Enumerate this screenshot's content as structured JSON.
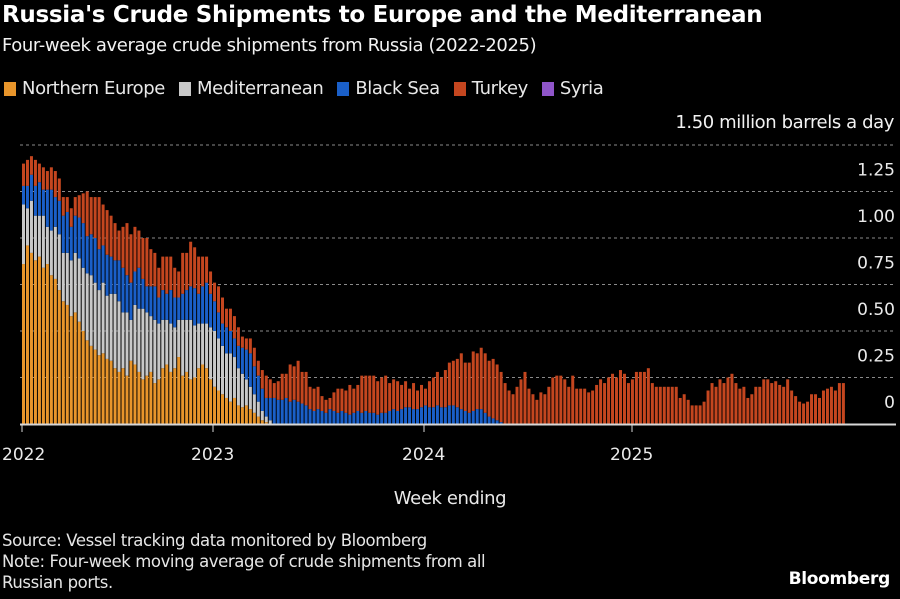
{
  "title": "Russia's Crude Shipments to Europe and the Mediterranean",
  "subtitle": "Four-week average crude shipments from Russia (2022-2025)",
  "unit_label": "1.50 million barrels a day",
  "xlabel": "Week ending",
  "footer": {
    "source": "Source: Vessel tracking data monitored by Bloomberg",
    "note_line1": "Note: Four-week moving average of crude shipments from all",
    "note_line2": "Russian ports."
  },
  "brand": "Bloomberg",
  "legend": [
    {
      "name": "Northern Europe",
      "color": "#e8952b"
    },
    {
      "name": "Mediterranean",
      "color": "#c8c8c8"
    },
    {
      "name": "Black Sea",
      "color": "#1a5fc8"
    },
    {
      "name": "Turkey",
      "color": "#c4461f"
    },
    {
      "name": "Syria",
      "color": "#8f55c9"
    }
  ],
  "chart_data": {
    "type": "bar",
    "stacked": true,
    "title": "Russia's Crude Shipments to Europe and the Mediterranean",
    "subtitle": "Four-week average crude shipments from Russia (2022-2025)",
    "xlabel": "Week ending",
    "ylabel": "million barrels a day",
    "ylim": [
      0,
      1.5
    ],
    "yticks": [
      0,
      0.25,
      0.5,
      0.75,
      1.0,
      1.25,
      1.5
    ],
    "ytick_labels": [
      "0",
      "0.25",
      "0.50",
      "0.75",
      "1.00",
      "1.25",
      "1.50 million barrels a day"
    ],
    "xticks": [
      "2022",
      "2023",
      "2024",
      "2025"
    ],
    "grid": true,
    "legend_position": "top-left",
    "x_start": "2022-01",
    "x_end": "2025-10",
    "frequency": "weekly",
    "series": [
      {
        "name": "Northern Europe",
        "color": "#e8952b",
        "values": [
          0.86,
          0.96,
          0.92,
          0.88,
          0.9,
          0.84,
          0.86,
          0.8,
          0.78,
          0.72,
          0.66,
          0.64,
          0.58,
          0.6,
          0.55,
          0.5,
          0.45,
          0.42,
          0.4,
          0.37,
          0.38,
          0.35,
          0.34,
          0.3,
          0.28,
          0.3,
          0.26,
          0.34,
          0.32,
          0.28,
          0.24,
          0.26,
          0.28,
          0.22,
          0.24,
          0.3,
          0.32,
          0.28,
          0.3,
          0.36,
          0.26,
          0.28,
          0.24,
          0.25,
          0.3,
          0.32,
          0.3,
          0.24,
          0.2,
          0.18,
          0.16,
          0.14,
          0.12,
          0.14,
          0.1,
          0.09,
          0.1,
          0.08,
          0.06,
          0.04,
          0.02,
          0.01,
          0,
          0,
          0,
          0,
          0,
          0,
          0,
          0,
          0,
          0,
          0,
          0,
          0,
          0,
          0,
          0,
          0,
          0,
          0,
          0,
          0,
          0,
          0,
          0,
          0,
          0,
          0,
          0,
          0,
          0,
          0,
          0,
          0,
          0,
          0,
          0,
          0,
          0,
          0,
          0,
          0,
          0,
          0,
          0,
          0,
          0,
          0,
          0,
          0,
          0,
          0,
          0,
          0,
          0,
          0,
          0,
          0,
          0,
          0,
          0,
          0,
          0,
          0,
          0,
          0,
          0,
          0,
          0,
          0,
          0,
          0,
          0,
          0,
          0,
          0,
          0,
          0,
          0,
          0,
          0,
          0,
          0,
          0,
          0,
          0,
          0,
          0,
          0,
          0,
          0,
          0,
          0,
          0,
          0,
          0,
          0,
          0,
          0,
          0,
          0,
          0,
          0,
          0,
          0,
          0,
          0,
          0,
          0,
          0,
          0,
          0,
          0,
          0,
          0,
          0,
          0,
          0,
          0,
          0,
          0,
          0,
          0,
          0,
          0,
          0,
          0,
          0,
          0,
          0,
          0,
          0,
          0,
          0,
          0,
          0,
          0,
          0,
          0,
          0,
          0,
          0,
          0,
          0,
          0,
          0,
          0,
          0,
          0,
          0,
          0
        ]
      },
      {
        "name": "Mediterranean",
        "color": "#c8c8c8",
        "values": [
          0.32,
          0.2,
          0.28,
          0.24,
          0.22,
          0.28,
          0.2,
          0.24,
          0.28,
          0.3,
          0.26,
          0.28,
          0.3,
          0.32,
          0.34,
          0.34,
          0.36,
          0.38,
          0.36,
          0.35,
          0.38,
          0.34,
          0.36,
          0.4,
          0.38,
          0.3,
          0.34,
          0.22,
          0.32,
          0.34,
          0.38,
          0.34,
          0.3,
          0.34,
          0.3,
          0.26,
          0.24,
          0.26,
          0.22,
          0.2,
          0.3,
          0.28,
          0.32,
          0.28,
          0.24,
          0.22,
          0.24,
          0.28,
          0.3,
          0.28,
          0.26,
          0.24,
          0.26,
          0.22,
          0.2,
          0.18,
          0.14,
          0.12,
          0.1,
          0.08,
          0.05,
          0.03,
          0.02,
          0,
          0,
          0,
          0,
          0,
          0,
          0,
          0,
          0,
          0,
          0,
          0,
          0,
          0,
          0,
          0,
          0,
          0,
          0,
          0,
          0,
          0,
          0,
          0,
          0,
          0,
          0,
          0,
          0,
          0,
          0,
          0,
          0,
          0,
          0,
          0,
          0,
          0,
          0,
          0,
          0,
          0,
          0,
          0,
          0,
          0,
          0,
          0,
          0,
          0,
          0,
          0,
          0,
          0,
          0,
          0,
          0,
          0,
          0,
          0,
          0,
          0,
          0,
          0,
          0,
          0,
          0,
          0,
          0,
          0,
          0,
          0,
          0,
          0,
          0,
          0,
          0,
          0,
          0,
          0,
          0,
          0,
          0,
          0,
          0,
          0,
          0,
          0,
          0,
          0,
          0,
          0,
          0,
          0,
          0,
          0,
          0,
          0,
          0,
          0,
          0,
          0,
          0,
          0,
          0,
          0,
          0,
          0,
          0,
          0,
          0,
          0,
          0,
          0,
          0,
          0,
          0,
          0,
          0,
          0,
          0,
          0,
          0,
          0,
          0,
          0,
          0,
          0,
          0,
          0,
          0,
          0,
          0,
          0,
          0,
          0,
          0,
          0,
          0,
          0,
          0,
          0,
          0,
          0,
          0,
          0,
          0,
          0,
          0,
          0,
          0
        ]
      },
      {
        "name": "Black Sea",
        "color": "#1a5fc8",
        "values": [
          0.1,
          0.12,
          0.14,
          0.16,
          0.18,
          0.14,
          0.2,
          0.22,
          0.16,
          0.18,
          0.2,
          0.22,
          0.18,
          0.2,
          0.22,
          0.24,
          0.2,
          0.22,
          0.24,
          0.22,
          0.2,
          0.22,
          0.2,
          0.18,
          0.22,
          0.24,
          0.2,
          0.2,
          0.18,
          0.22,
          0.16,
          0.14,
          0.16,
          0.18,
          0.14,
          0.16,
          0.14,
          0.18,
          0.16,
          0.12,
          0.14,
          0.16,
          0.18,
          0.2,
          0.16,
          0.2,
          0.22,
          0.18,
          0.16,
          0.14,
          0.12,
          0.14,
          0.12,
          0.1,
          0.12,
          0.14,
          0.16,
          0.18,
          0.15,
          0.14,
          0.12,
          0.1,
          0.12,
          0.14,
          0.13,
          0.13,
          0.14,
          0.12,
          0.13,
          0.12,
          0.11,
          0.1,
          0.08,
          0.07,
          0.08,
          0.07,
          0.06,
          0.08,
          0.07,
          0.06,
          0.07,
          0.06,
          0.05,
          0.06,
          0.07,
          0.06,
          0.07,
          0.06,
          0.06,
          0.05,
          0.06,
          0.06,
          0.07,
          0.08,
          0.07,
          0.08,
          0.09,
          0.09,
          0.08,
          0.08,
          0.09,
          0.1,
          0.09,
          0.09,
          0.1,
          0.09,
          0.09,
          0.1,
          0.1,
          0.09,
          0.08,
          0.07,
          0.06,
          0.07,
          0.08,
          0.08,
          0.06,
          0.04,
          0.03,
          0.02,
          0.01,
          0,
          0,
          0,
          0,
          0,
          0,
          0,
          0,
          0,
          0,
          0,
          0,
          0,
          0,
          0,
          0,
          0,
          0,
          0,
          0,
          0,
          0,
          0,
          0,
          0,
          0,
          0,
          0,
          0,
          0,
          0,
          0,
          0,
          0,
          0,
          0,
          0,
          0,
          0,
          0,
          0,
          0,
          0,
          0,
          0,
          0,
          0,
          0,
          0,
          0,
          0,
          0,
          0,
          0,
          0,
          0,
          0,
          0,
          0,
          0,
          0,
          0,
          0,
          0,
          0,
          0,
          0,
          0,
          0,
          0,
          0,
          0,
          0,
          0,
          0,
          0,
          0,
          0,
          0,
          0,
          0,
          0,
          0,
          0,
          0,
          0,
          0,
          0,
          0,
          0,
          0,
          0,
          0,
          0
        ]
      },
      {
        "name": "Turkey",
        "color": "#c4461f",
        "values": [
          0.12,
          0.14,
          0.1,
          0.14,
          0.1,
          0.12,
          0.1,
          0.12,
          0.14,
          0.12,
          0.1,
          0.08,
          0.1,
          0.1,
          0.12,
          0.16,
          0.24,
          0.2,
          0.22,
          0.28,
          0.22,
          0.24,
          0.22,
          0.2,
          0.16,
          0.22,
          0.28,
          0.26,
          0.24,
          0.2,
          0.22,
          0.26,
          0.2,
          0.18,
          0.16,
          0.18,
          0.2,
          0.18,
          0.16,
          0.14,
          0.22,
          0.2,
          0.24,
          0.22,
          0.2,
          0.16,
          0.14,
          0.12,
          0.1,
          0.14,
          0.14,
          0.1,
          0.12,
          0.12,
          0.1,
          0.06,
          0.06,
          0.08,
          0.1,
          0.08,
          0.1,
          0.12,
          0.1,
          0.08,
          0.1,
          0.14,
          0.13,
          0.2,
          0.18,
          0.22,
          0.17,
          0.18,
          0.12,
          0.12,
          0.12,
          0.08,
          0.07,
          0.06,
          0.1,
          0.13,
          0.12,
          0.12,
          0.16,
          0.13,
          0.14,
          0.2,
          0.19,
          0.2,
          0.2,
          0.18,
          0.19,
          0.2,
          0.15,
          0.16,
          0.16,
          0.13,
          0.14,
          0.1,
          0.14,
          0.1,
          0.12,
          0.09,
          0.14,
          0.16,
          0.18,
          0.16,
          0.2,
          0.23,
          0.24,
          0.26,
          0.3,
          0.26,
          0.27,
          0.32,
          0.3,
          0.33,
          0.32,
          0.3,
          0.32,
          0.3,
          0.27,
          0.22,
          0.18,
          0.16,
          0.2,
          0.24,
          0.28,
          0.19,
          0.16,
          0.13,
          0.17,
          0.16,
          0.2,
          0.25,
          0.26,
          0.26,
          0.24,
          0.2,
          0.26,
          0.19,
          0.19,
          0.19,
          0.17,
          0.18,
          0.21,
          0.24,
          0.22,
          0.25,
          0.27,
          0.25,
          0.29,
          0.27,
          0.22,
          0.24,
          0.28,
          0.28,
          0.28,
          0.3,
          0.22,
          0.2,
          0.2,
          0.2,
          0.2,
          0.2,
          0.2,
          0.14,
          0.16,
          0.13,
          0.1,
          0.1,
          0.1,
          0.12,
          0.18,
          0.22,
          0.2,
          0.24,
          0.22,
          0.25,
          0.27,
          0.22,
          0.19,
          0.2,
          0.14,
          0.16,
          0.2,
          0.2,
          0.24,
          0.24,
          0.22,
          0.23,
          0.21,
          0.2,
          0.24,
          0.18,
          0.15,
          0.12,
          0.11,
          0.12,
          0.16,
          0.16,
          0.14,
          0.18,
          0.19,
          0.2,
          0.18,
          0.22,
          0.22
        ]
      },
      {
        "name": "Syria",
        "color": "#8f55c9",
        "values": [
          0,
          0,
          0,
          0,
          0,
          0,
          0,
          0,
          0,
          0,
          0,
          0,
          0,
          0,
          0,
          0,
          0,
          0,
          0,
          0,
          0,
          0,
          0,
          0,
          0,
          0,
          0,
          0,
          0,
          0,
          0,
          0,
          0,
          0,
          0,
          0,
          0,
          0,
          0,
          0,
          0,
          0,
          0,
          0,
          0,
          0,
          0,
          0,
          0,
          0,
          0,
          0,
          0,
          0,
          0,
          0,
          0,
          0,
          0,
          0,
          0,
          0,
          0,
          0,
          0,
          0,
          0,
          0,
          0,
          0,
          0,
          0,
          0,
          0,
          0,
          0,
          0,
          0,
          0,
          0,
          0,
          0,
          0,
          0,
          0,
          0,
          0,
          0,
          0,
          0,
          0,
          0,
          0,
          0,
          0,
          0,
          0,
          0,
          0,
          0,
          0,
          0,
          0,
          0,
          0,
          0,
          0,
          0,
          0,
          0,
          0,
          0,
          0,
          0,
          0,
          0,
          0,
          0,
          0,
          0,
          0,
          0,
          0,
          0,
          0,
          0,
          0,
          0,
          0,
          0,
          0,
          0,
          0,
          0,
          0,
          0,
          0,
          0,
          0,
          0,
          0,
          0,
          0,
          0,
          0,
          0,
          0,
          0,
          0,
          0,
          0,
          0,
          0,
          0,
          0,
          0,
          0,
          0,
          0,
          0,
          0,
          0,
          0,
          0,
          0,
          0,
          0,
          0,
          0,
          0,
          0,
          0,
          0,
          0,
          0,
          0,
          0,
          0,
          0,
          0,
          0,
          0,
          0,
          0,
          0,
          0,
          0,
          0,
          0,
          0,
          0,
          0,
          0,
          0,
          0,
          0,
          0,
          0,
          0,
          0
        ]
      }
    ]
  }
}
